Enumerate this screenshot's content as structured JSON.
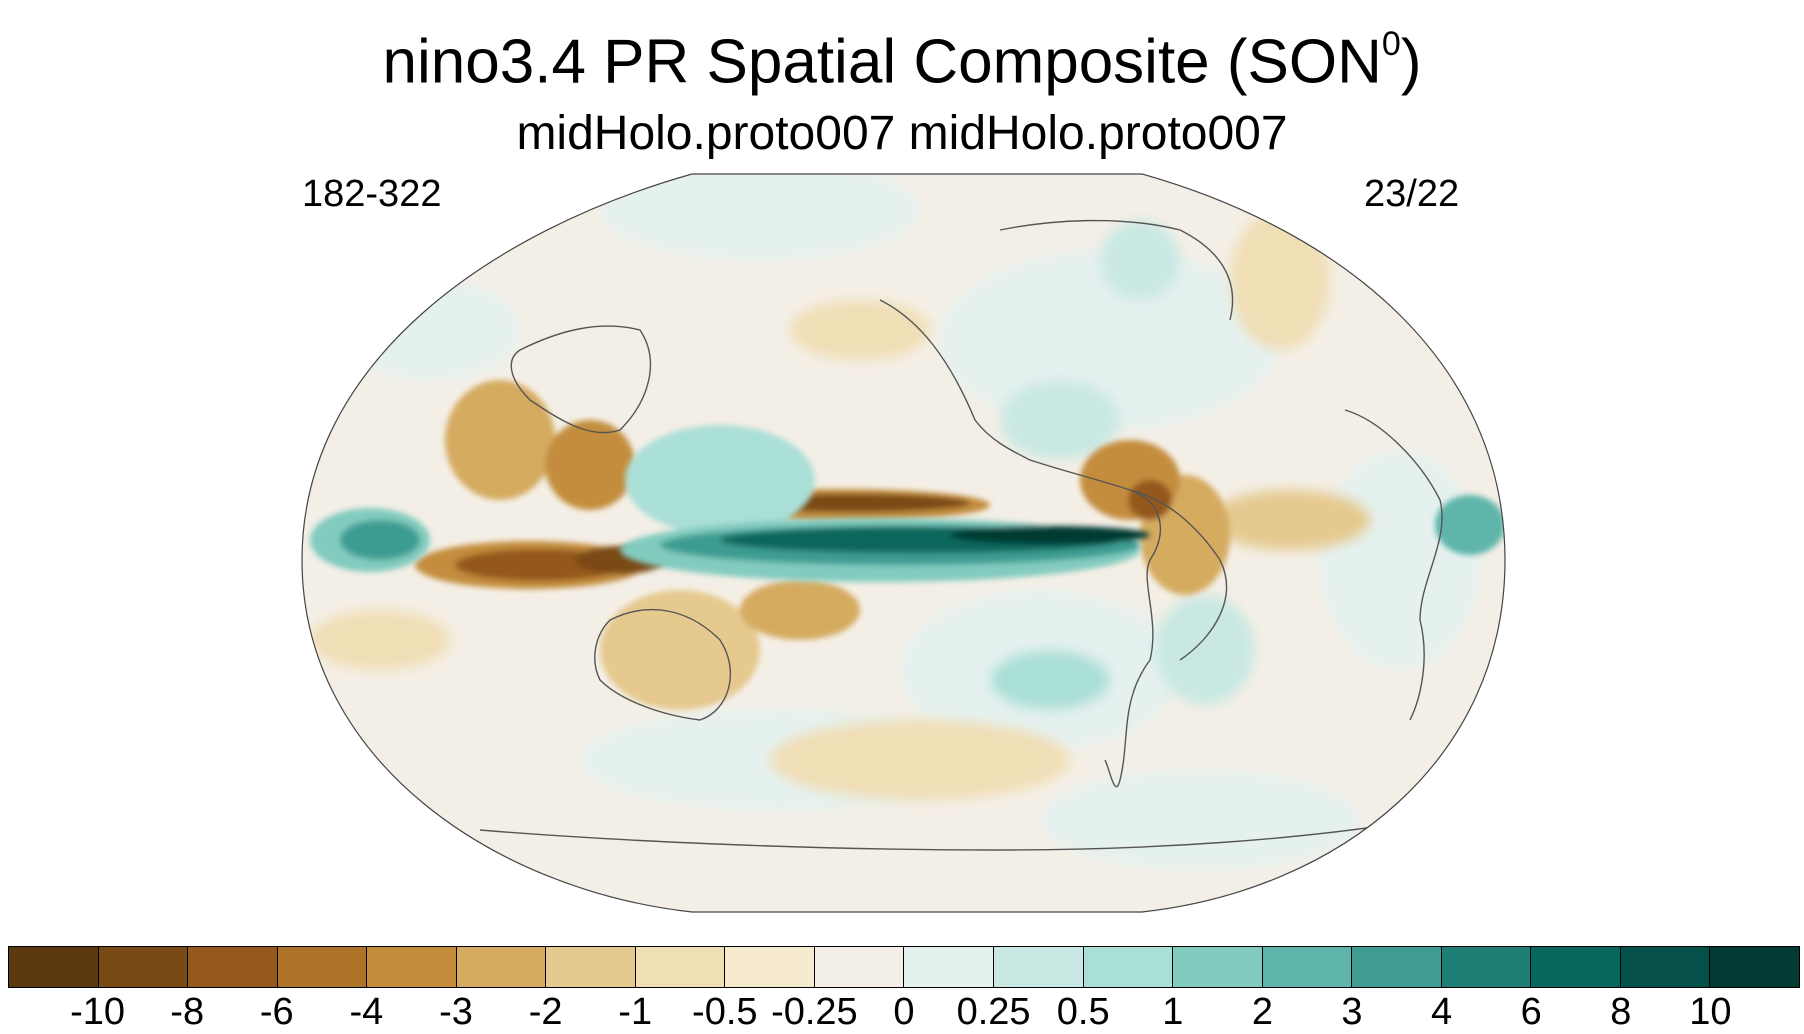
{
  "title": {
    "main": "nino3.4 PR Spatial Composite (SON",
    "superscript": "0",
    "close": ")"
  },
  "subtitle": "midHolo.proto007  midHolo.proto007",
  "left_annotation": "182-322",
  "right_annotation": "23/22",
  "map": {
    "projection": "Robinson-like global ellipse, Pacific-centered",
    "background_color": "#f4efe6",
    "coastline_color": "#555555"
  },
  "colorbar": {
    "colors": [
      "#5b3a12",
      "#7a4a16",
      "#94591b",
      "#ad7328",
      "#c38d3c",
      "#d5ab61",
      "#e5c98f",
      "#f0deb5",
      "#f6ebcf",
      "#f4efe6",
      "#e5f1ef",
      "#c9e8e3",
      "#aadfd7",
      "#82cbbf",
      "#5fb5aa",
      "#3e9c92",
      "#1f7f76",
      "#07665d",
      "#05514a",
      "#033a33"
    ],
    "tick_labels": [
      "-10",
      "-8",
      "-6",
      "-4",
      "-3",
      "-2",
      "-1",
      "-0.5",
      "-0.25",
      "0",
      "0.25",
      "0.5",
      "1",
      "2",
      "3",
      "4",
      "6",
      "8",
      "10"
    ]
  }
}
